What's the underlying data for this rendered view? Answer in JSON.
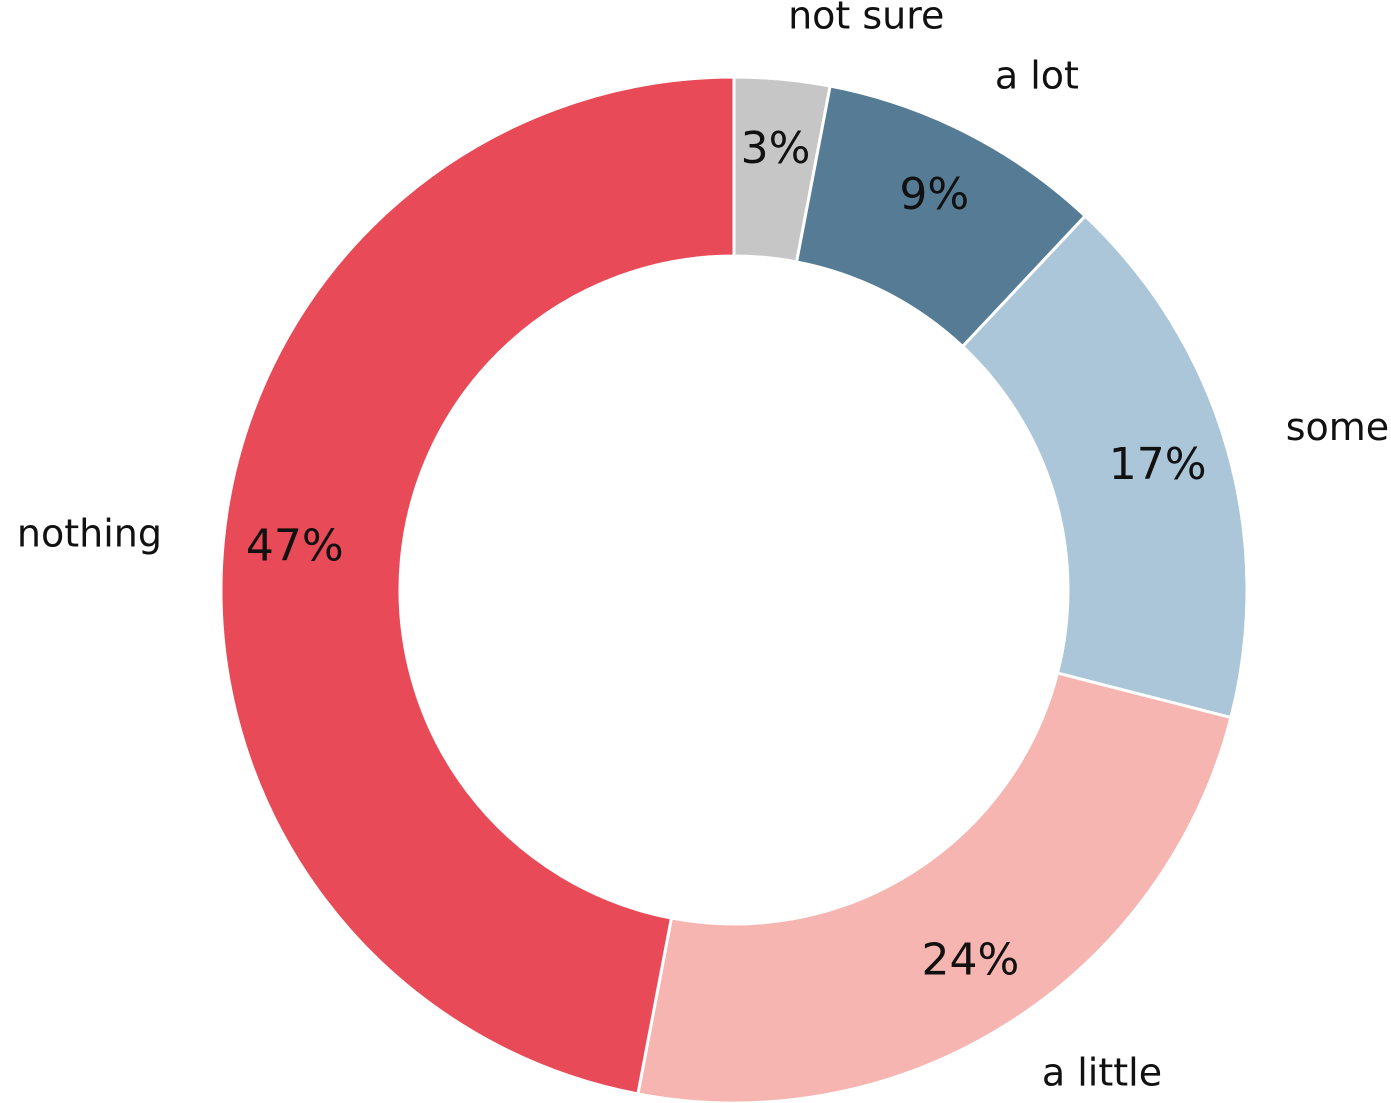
{
  "chart_data": {
    "type": "donut",
    "categories": [
      "not sure",
      "a lot",
      "some",
      "a little",
      "nothing"
    ],
    "values": [
      3,
      9,
      17,
      24,
      47
    ],
    "value_labels": [
      "3%",
      "9%",
      "17%",
      "24%",
      "47%"
    ],
    "colors": [
      "#c6c6c6",
      "#557c94",
      "#abc6d8",
      "#f7b5b2",
      "#e84a57"
    ]
  }
}
